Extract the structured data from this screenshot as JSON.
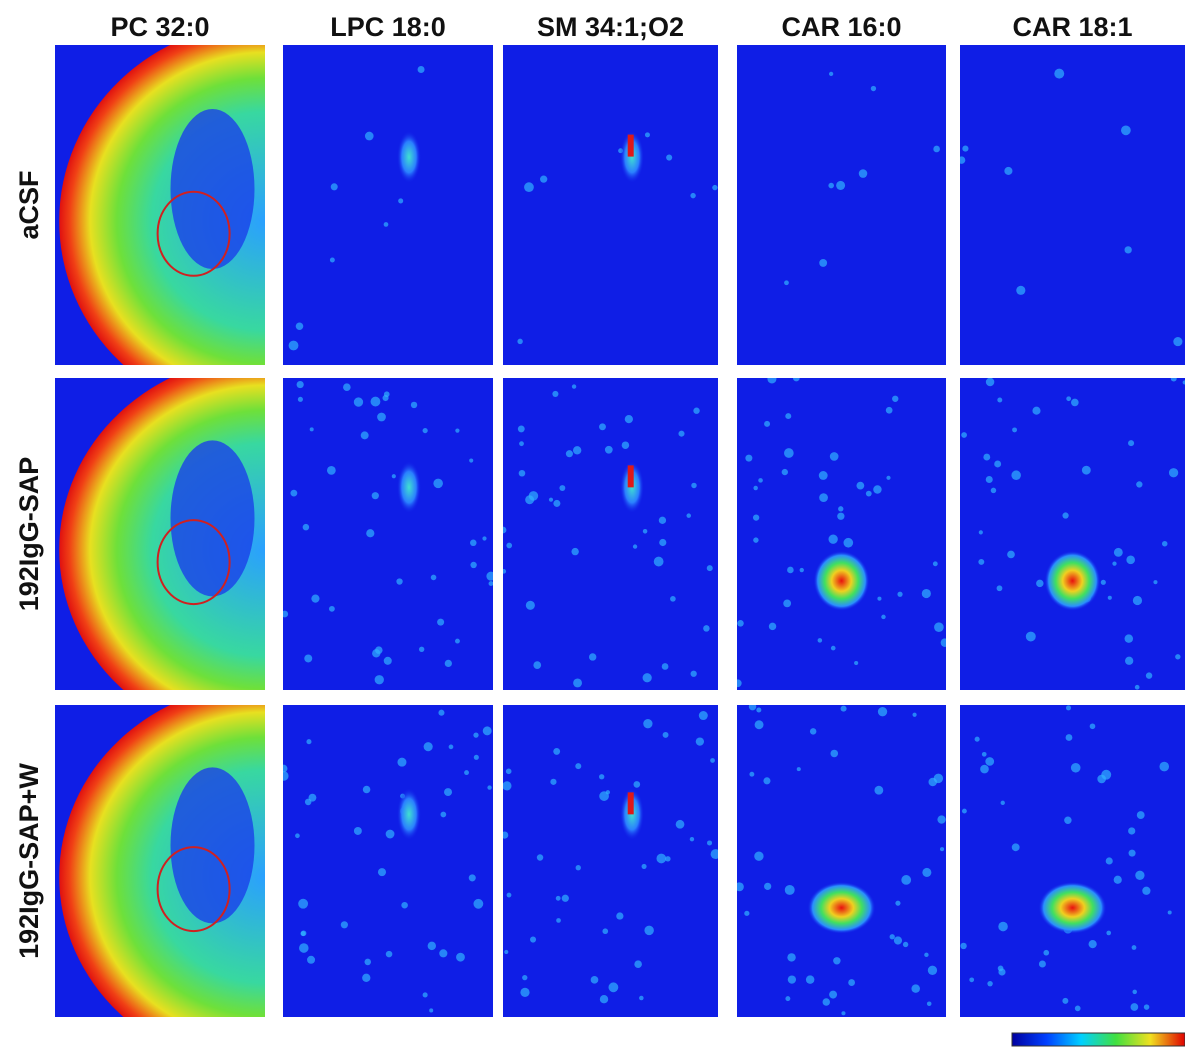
{
  "columns": [
    "PC 32:0",
    "LPC 18:0",
    "SM 34:1;O2",
    "CAR 16:0",
    "CAR 18:1"
  ],
  "rows": [
    "aCSF",
    "192IgG-SAP",
    "192IgG-SAP+W"
  ]
}
